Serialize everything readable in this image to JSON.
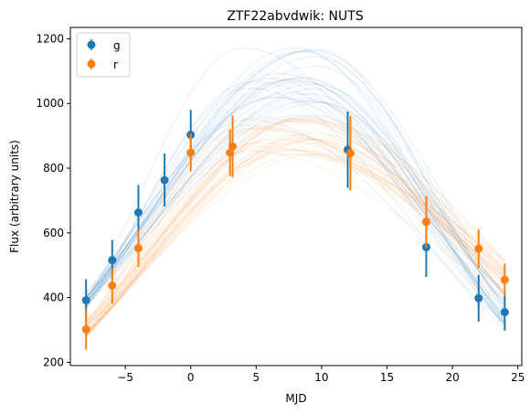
{
  "chart_data": {
    "type": "scatter",
    "title": "ZTF22abvdwik: NUTS",
    "xlabel": "MJD",
    "ylabel": "Flux (arbitrary units)",
    "xlim": [
      -9.2,
      25.3
    ],
    "ylim": [
      190,
      1235
    ],
    "xticks": [
      -5,
      0,
      5,
      10,
      15,
      20,
      25
    ],
    "yticks": [
      200,
      400,
      600,
      800,
      1000,
      1200
    ],
    "grid": false,
    "legend": "top-left",
    "series": [
      {
        "name": "g",
        "color": "#1f77b4",
        "points": [
          {
            "x": -8,
            "y": 392,
            "err": 65
          },
          {
            "x": -6,
            "y": 516,
            "err": 62
          },
          {
            "x": -4,
            "y": 663,
            "err": 85
          },
          {
            "x": -2,
            "y": 763,
            "err": 82
          },
          {
            "x": 0,
            "y": 903,
            "err": 77
          },
          {
            "x": 12,
            "y": 857,
            "err": 118
          },
          {
            "x": 18,
            "y": 556,
            "err": 92
          },
          {
            "x": 22,
            "y": 398,
            "err": 72
          },
          {
            "x": 24,
            "y": 355,
            "err": 57
          }
        ]
      },
      {
        "name": "r",
        "color": "#ff7f0e",
        "points": [
          {
            "x": -8,
            "y": 302,
            "err": 62
          },
          {
            "x": -6,
            "y": 437,
            "err": 55
          },
          {
            "x": -4,
            "y": 553,
            "err": 58
          },
          {
            "x": 0,
            "y": 848,
            "err": 58
          },
          {
            "x": 3,
            "y": 848,
            "err": 72
          },
          {
            "x": 3.2,
            "y": 867,
            "err": 95
          },
          {
            "x": 12.2,
            "y": 846,
            "err": 115
          },
          {
            "x": 18,
            "y": 634,
            "err": 80
          },
          {
            "x": 22,
            "y": 551,
            "err": 60
          },
          {
            "x": 24,
            "y": 455,
            "err": 50
          }
        ]
      }
    ],
    "model_curves": {
      "g": {
        "count": 30,
        "peak_x_range": [
          4,
          10
        ],
        "peak_y_range": [
          950,
          1190
        ],
        "color": "#1f77b4",
        "opacity": 0.12
      },
      "r": {
        "count": 30,
        "peak_x_range": [
          4,
          10
        ],
        "peak_y_range": [
          840,
          960
        ],
        "color": "#ff7f0e",
        "opacity": 0.12
      }
    }
  }
}
